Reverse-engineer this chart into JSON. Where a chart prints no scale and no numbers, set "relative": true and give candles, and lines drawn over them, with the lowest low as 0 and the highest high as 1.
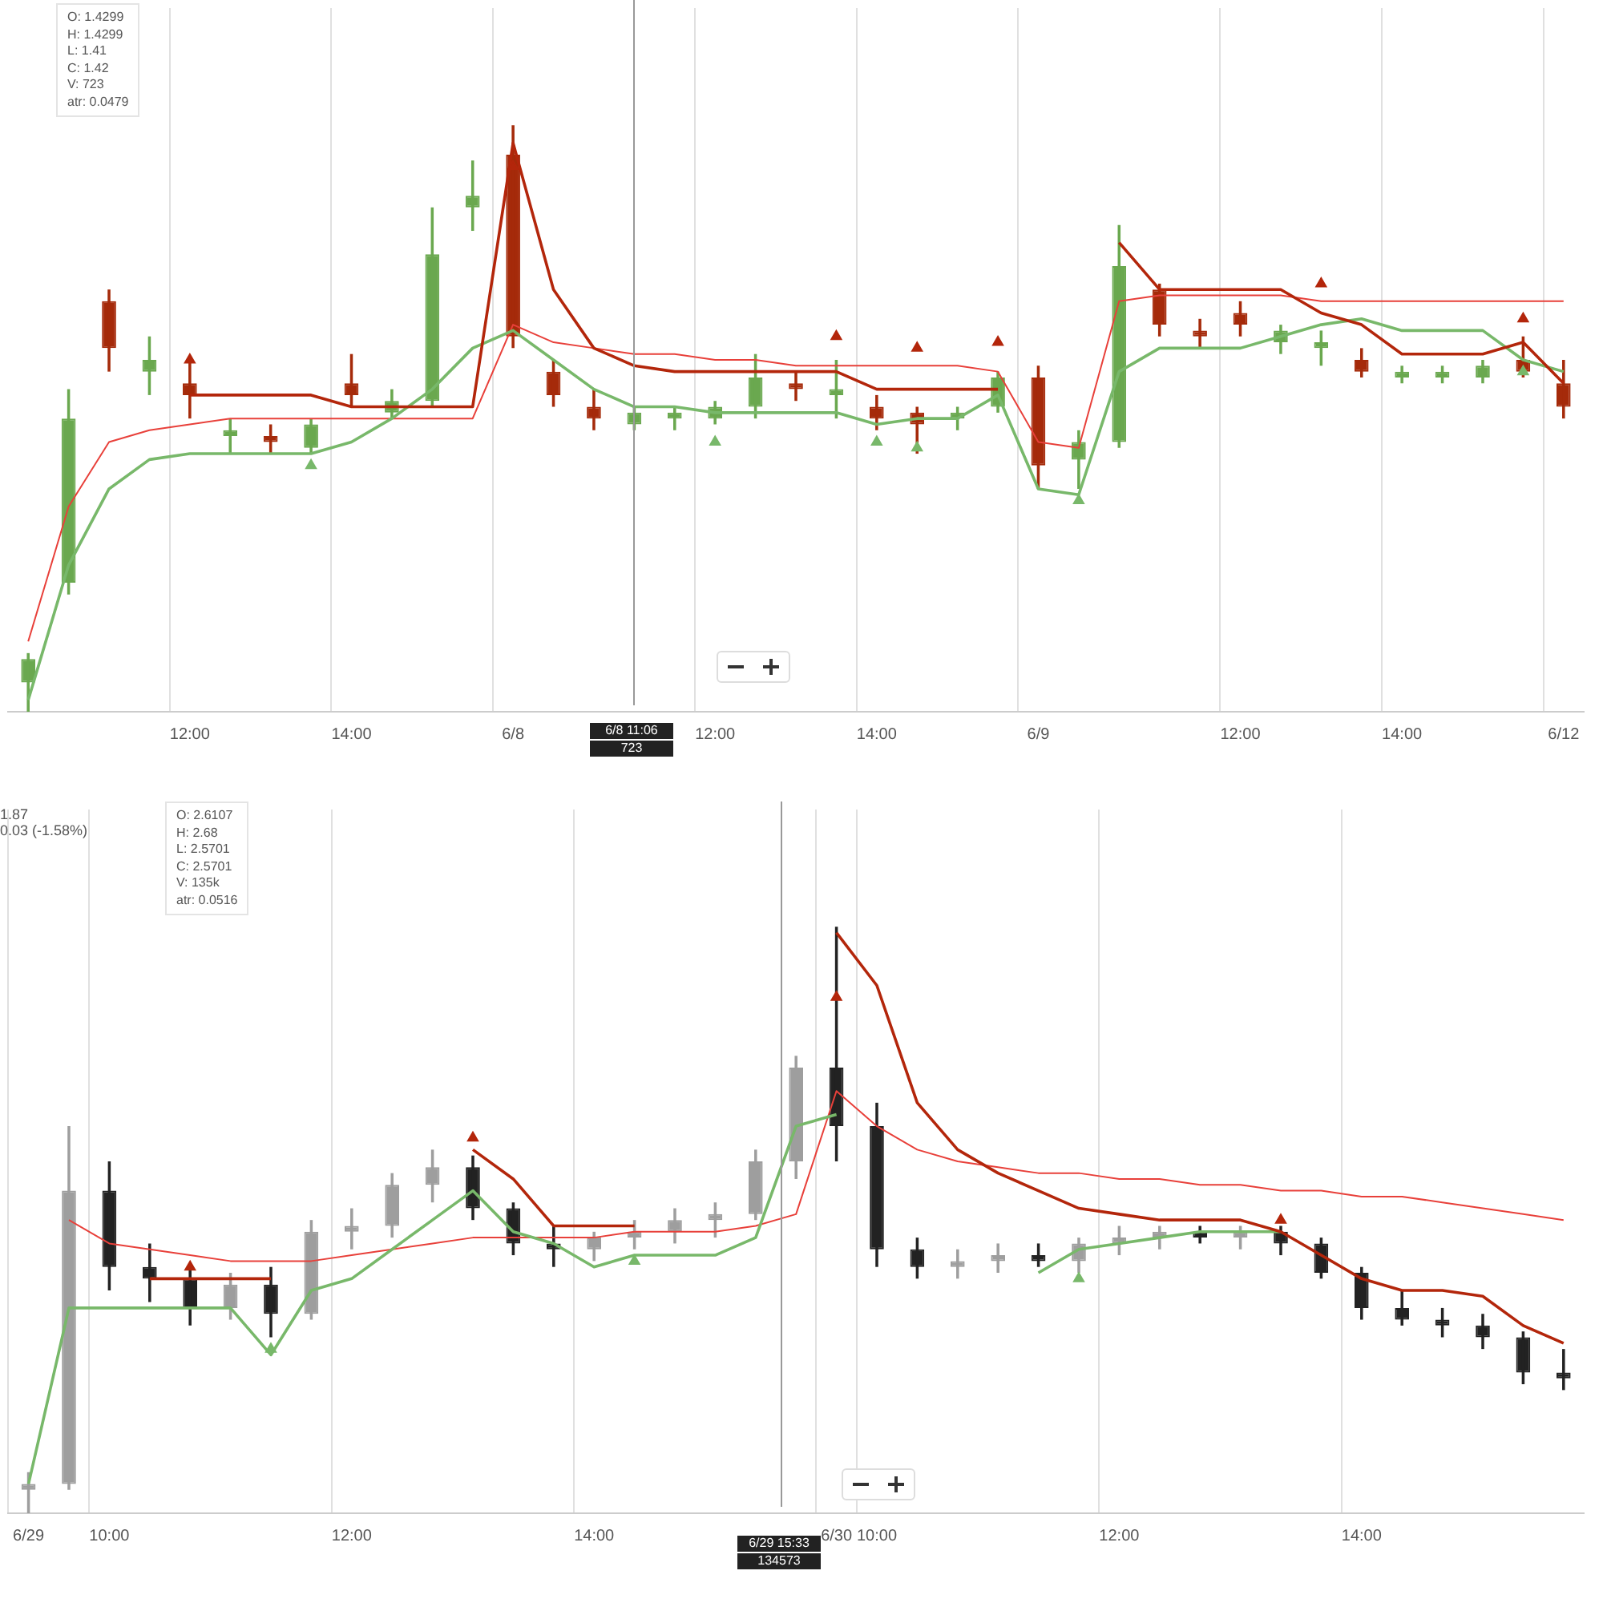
{
  "chart_data": [
    {
      "type": "candlestick",
      "relative": true,
      "grid": "x",
      "tick_labels": "x",
      "categories": [
        null,
        null,
        null,
        null,
        "12:00",
        null,
        null,
        null,
        "14:00",
        null,
        null,
        null,
        "6/8",
        null,
        null,
        null,
        null,
        "12:00",
        null,
        null,
        null,
        "14:00",
        null,
        null,
        null,
        "6/9",
        null,
        null,
        null,
        null,
        "12:00",
        null,
        null,
        null,
        "14:00",
        null,
        null,
        null,
        "6/12"
      ],
      "ohlc": [
        [
          0.05,
          0.1,
          0,
          0.09
        ],
        [
          0.22,
          0.55,
          0.2,
          0.5
        ],
        [
          0.7,
          0.72,
          0.58,
          0.62
        ],
        [
          0.58,
          0.64,
          0.54,
          0.6
        ],
        [
          0.56,
          0.6,
          0.5,
          0.54
        ],
        [
          0.47,
          0.5,
          0.44,
          0.48
        ],
        [
          0.47,
          0.49,
          0.44,
          0.46
        ],
        [
          0.45,
          0.5,
          0.44,
          0.49
        ],
        [
          0.56,
          0.61,
          0.52,
          0.54
        ],
        [
          0.51,
          0.55,
          0.5,
          0.53
        ],
        [
          0.53,
          0.86,
          0.52,
          0.78
        ],
        [
          0.86,
          0.94,
          0.82,
          0.88
        ],
        [
          0.95,
          1,
          0.62,
          0.64
        ],
        [
          0.58,
          0.6,
          0.52,
          0.54
        ],
        [
          0.52,
          0.55,
          0.48,
          0.5
        ],
        [
          0.49,
          0.52,
          0.48,
          0.51
        ],
        [
          0.5,
          0.52,
          0.48,
          0.51
        ],
        [
          0.5,
          0.53,
          0.49,
          0.52
        ],
        [
          0.52,
          0.61,
          0.5,
          0.57
        ],
        [
          0.56,
          0.58,
          0.53,
          0.55
        ],
        [
          0.54,
          0.6,
          0.5,
          0.55
        ],
        [
          0.52,
          0.54,
          0.48,
          0.5
        ],
        [
          0.51,
          0.52,
          0.44,
          0.49
        ],
        [
          0.5,
          0.52,
          0.48,
          0.51
        ],
        [
          0.52,
          0.58,
          0.51,
          0.57
        ],
        [
          0.57,
          0.59,
          0.38,
          0.42
        ],
        [
          0.43,
          0.48,
          0.38,
          0.46
        ],
        [
          0.46,
          0.83,
          0.45,
          0.76
        ],
        [
          0.72,
          0.73,
          0.64,
          0.66
        ],
        [
          0.65,
          0.67,
          0.62,
          0.64
        ],
        [
          0.68,
          0.7,
          0.64,
          0.66
        ],
        [
          0.63,
          0.66,
          0.61,
          0.65
        ],
        [
          0.62,
          0.65,
          0.59,
          0.63
        ],
        [
          0.6,
          0.62,
          0.57,
          0.58
        ],
        [
          0.57,
          0.59,
          0.56,
          0.58
        ],
        [
          0.57,
          0.59,
          0.56,
          0.58
        ],
        [
          0.57,
          0.6,
          0.56,
          0.59
        ],
        [
          0.6,
          0.64,
          0.57,
          0.58
        ],
        [
          0.56,
          0.6,
          0.5,
          0.52
        ]
      ],
      "colors": [
        "#6aa84f",
        "#6aa84f",
        "#a52a0a",
        "#6aa84f",
        "#a52a0a",
        "#6aa84f",
        "#a52a0a",
        "#6aa84f",
        "#a52a0a",
        "#6aa84f",
        "#6aa84f",
        "#6aa84f",
        "#a52a0a",
        "#a52a0a",
        "#a52a0a",
        "#6aa84f",
        "#6aa84f",
        "#6aa84f",
        "#6aa84f",
        "#a52a0a",
        "#6aa84f",
        "#a52a0a",
        "#a52a0a",
        "#6aa84f",
        "#6aa84f",
        "#a52a0a",
        "#6aa84f",
        "#6aa84f",
        "#a52a0a",
        "#a52a0a",
        "#a52a0a",
        "#6aa84f",
        "#6aa84f",
        "#a52a0a",
        "#6aa84f",
        "#6aa84f",
        "#6aa84f",
        "#a52a0a",
        "#a52a0a"
      ],
      "series": [
        {
          "type": "line",
          "color": "#e8403a",
          "values": [
            0.12,
            0.35,
            0.46,
            0.48,
            0.49,
            0.5,
            0.5,
            0.5,
            0.5,
            0.5,
            0.5,
            0.5,
            0.66,
            0.63,
            0.62,
            0.61,
            0.61,
            0.6,
            0.6,
            0.59,
            0.59,
            0.59,
            0.59,
            0.59,
            0.58,
            0.46,
            0.45,
            0.7,
            0.71,
            0.71,
            0.71,
            0.71,
            0.7,
            0.7,
            0.7,
            0.7,
            0.7,
            0.7,
            0.7
          ]
        },
        {
          "type": "line",
          "color": "#78b86a",
          "values": [
            0.02,
            0.25,
            0.38,
            0.43,
            0.44,
            0.44,
            0.44,
            0.44,
            0.46,
            0.5,
            0.55,
            0.62,
            0.65,
            0.6,
            0.55,
            0.52,
            0.52,
            0.51,
            0.51,
            0.51,
            0.51,
            0.49,
            0.5,
            0.5,
            0.54,
            0.38,
            0.37,
            0.58,
            0.62,
            0.62,
            0.62,
            0.64,
            0.66,
            0.67,
            0.65,
            0.65,
            0.65,
            0.6,
            0.58
          ]
        },
        {
          "type": "line",
          "color": "#b3260b",
          "values": [
            null,
            null,
            null,
            null,
            0.54,
            0.54,
            0.54,
            0.54,
            0.52,
            0.52,
            0.52,
            0.52,
            0.97,
            0.72,
            0.62,
            0.59,
            0.58,
            0.58,
            0.58,
            0.58,
            0.58,
            0.55,
            0.55,
            0.55,
            0.55,
            null,
            null,
            0.8,
            0.72,
            0.72,
            0.72,
            0.72,
            0.68,
            0.66,
            0.61,
            0.61,
            0.61,
            0.63,
            0.56
          ]
        },
        {
          "type": "scatter",
          "marker": "triangle",
          "color": "#78b86a",
          "values": [
            null,
            null,
            null,
            null,
            null,
            null,
            null,
            0.42,
            null,
            null,
            null,
            null,
            null,
            null,
            null,
            null,
            null,
            0.46,
            null,
            null,
            null,
            0.46,
            0.45,
            null,
            null,
            null,
            0.36,
            null,
            null,
            null,
            null,
            null,
            null,
            null,
            null,
            null,
            null,
            0.58,
            null
          ]
        },
        {
          "type": "scatter",
          "marker": "triangle",
          "color": "#b3260b",
          "values": [
            null,
            null,
            null,
            null,
            0.6,
            null,
            null,
            null,
            null,
            null,
            null,
            null,
            0.93,
            null,
            null,
            null,
            null,
            null,
            null,
            null,
            0.64,
            null,
            0.62,
            null,
            0.63,
            null,
            null,
            null,
            null,
            null,
            null,
            null,
            0.73,
            null,
            null,
            null,
            null,
            0.67,
            null
          ]
        }
      ],
      "annotations": [
        "O:  1.4299",
        "H:  1.4299",
        "L:  1.41",
        "C:  1.42",
        "V:  723",
        "atr:  0.0479",
        "6/8 11:06",
        "723"
      ]
    },
    {
      "type": "candlestick",
      "relative": true,
      "grid": "x",
      "tick_labels": "x",
      "categories": [
        "6/29",
        null,
        "10:00",
        null,
        null,
        null,
        null,
        null,
        "12:00",
        null,
        null,
        null,
        null,
        null,
        "14:00",
        null,
        null,
        null,
        null,
        null,
        "6/30",
        "10:00",
        null,
        null,
        null,
        null,
        null,
        "12:00",
        null,
        null,
        null,
        null,
        null,
        "14:00",
        null,
        null,
        null,
        null,
        null
      ],
      "ohlc": [
        [
          0.04,
          0.07,
          0,
          0.05
        ],
        [
          0.05,
          0.66,
          0.04,
          0.55
        ],
        [
          0.55,
          0.6,
          0.38,
          0.42
        ],
        [
          0.42,
          0.46,
          0.36,
          0.4
        ],
        [
          0.4,
          0.42,
          0.32,
          0.35
        ],
        [
          0.35,
          0.41,
          0.33,
          0.39
        ],
        [
          0.39,
          0.42,
          0.3,
          0.34
        ],
        [
          0.34,
          0.5,
          0.33,
          0.48
        ],
        [
          0.48,
          0.52,
          0.45,
          0.49
        ],
        [
          0.49,
          0.58,
          0.47,
          0.56
        ],
        [
          0.56,
          0.62,
          0.53,
          0.59
        ],
        [
          0.59,
          0.61,
          0.5,
          0.52
        ],
        [
          0.52,
          0.53,
          0.44,
          0.46
        ],
        [
          0.46,
          0.49,
          0.42,
          0.45
        ],
        [
          0.45,
          0.48,
          0.43,
          0.47
        ],
        [
          0.47,
          0.5,
          0.45,
          0.48
        ],
        [
          0.48,
          0.52,
          0.46,
          0.5
        ],
        [
          0.5,
          0.53,
          0.47,
          0.51
        ],
        [
          0.51,
          0.62,
          0.5,
          0.6
        ],
        [
          0.6,
          0.78,
          0.57,
          0.76
        ],
        [
          0.76,
          1,
          0.6,
          0.66
        ],
        [
          0.66,
          0.7,
          0.42,
          0.45
        ],
        [
          0.45,
          0.47,
          0.4,
          0.42
        ],
        [
          0.42,
          0.45,
          0.4,
          0.43
        ],
        [
          0.43,
          0.46,
          0.41,
          0.44
        ],
        [
          0.44,
          0.46,
          0.42,
          0.43
        ],
        [
          0.43,
          0.47,
          0.41,
          0.46
        ],
        [
          0.46,
          0.49,
          0.44,
          0.47
        ],
        [
          0.47,
          0.49,
          0.45,
          0.48
        ],
        [
          0.48,
          0.49,
          0.46,
          0.47
        ],
        [
          0.47,
          0.49,
          0.45,
          0.48
        ],
        [
          0.48,
          0.49,
          0.44,
          0.46
        ],
        [
          0.46,
          0.47,
          0.4,
          0.41
        ],
        [
          0.41,
          0.42,
          0.33,
          0.35
        ],
        [
          0.35,
          0.38,
          0.32,
          0.33
        ],
        [
          0.33,
          0.35,
          0.3,
          0.32
        ],
        [
          0.32,
          0.34,
          0.28,
          0.3
        ],
        [
          0.3,
          0.31,
          0.22,
          0.24
        ],
        [
          0.24,
          0.28,
          0.21,
          0.23
        ]
      ],
      "colors": [
        "#9e9e9e",
        "#9e9e9e",
        "#222222",
        "#222222",
        "#222222",
        "#9e9e9e",
        "#222222",
        "#9e9e9e",
        "#9e9e9e",
        "#9e9e9e",
        "#9e9e9e",
        "#222222",
        "#222222",
        "#222222",
        "#9e9e9e",
        "#9e9e9e",
        "#9e9e9e",
        "#9e9e9e",
        "#9e9e9e",
        "#9e9e9e",
        "#222222",
        "#222222",
        "#222222",
        "#9e9e9e",
        "#9e9e9e",
        "#222222",
        "#9e9e9e",
        "#9e9e9e",
        "#9e9e9e",
        "#222222",
        "#9e9e9e",
        "#222222",
        "#222222",
        "#222222",
        "#222222",
        "#222222",
        "#222222",
        "#222222",
        "#222222"
      ],
      "series": [
        {
          "type": "line",
          "color": "#e8403a",
          "values": [
            null,
            0.5,
            0.46,
            0.45,
            0.44,
            0.43,
            0.43,
            0.43,
            0.44,
            0.45,
            0.46,
            0.47,
            0.47,
            0.47,
            0.47,
            0.48,
            0.48,
            0.48,
            0.49,
            0.51,
            0.72,
            0.66,
            0.62,
            0.6,
            0.59,
            0.58,
            0.58,
            0.57,
            0.57,
            0.56,
            0.56,
            0.55,
            0.55,
            0.54,
            0.54,
            0.53,
            0.52,
            0.51,
            0.5
          ]
        },
        {
          "type": "line",
          "color": "#78b86a",
          "values": [
            0.05,
            0.35,
            0.35,
            0.35,
            0.35,
            0.35,
            0.27,
            0.38,
            0.4,
            0.45,
            0.5,
            0.55,
            0.48,
            0.46,
            0.42,
            0.44,
            0.44,
            0.44,
            0.47,
            0.66,
            0.68,
            null,
            null,
            null,
            null,
            0.41,
            0.45,
            0.46,
            0.47,
            0.48,
            0.48,
            0.48,
            null,
            null,
            null,
            null,
            null,
            null,
            null
          ]
        },
        {
          "type": "line",
          "color": "#b3260b",
          "values": [
            null,
            null,
            null,
            0.4,
            0.4,
            0.4,
            0.4,
            null,
            null,
            null,
            null,
            0.62,
            0.57,
            0.49,
            0.49,
            0.49,
            null,
            null,
            null,
            null,
            0.99,
            0.9,
            0.7,
            0.62,
            0.58,
            0.55,
            0.52,
            0.51,
            0.5,
            0.5,
            0.5,
            0.48,
            0.44,
            0.4,
            0.38,
            0.38,
            0.37,
            0.32,
            0.29
          ]
        },
        {
          "type": "scatter",
          "marker": "triangle",
          "color": "#78b86a",
          "values": [
            null,
            null,
            null,
            null,
            null,
            null,
            0.28,
            null,
            null,
            null,
            null,
            null,
            null,
            null,
            null,
            0.43,
            null,
            null,
            null,
            null,
            null,
            null,
            null,
            null,
            null,
            null,
            0.4,
            null,
            null,
            null,
            null,
            null,
            null,
            null,
            null,
            null,
            null,
            null,
            null
          ]
        },
        {
          "type": "scatter",
          "marker": "triangle",
          "color": "#b3260b",
          "values": [
            null,
            null,
            null,
            null,
            0.42,
            null,
            null,
            null,
            null,
            null,
            null,
            0.64,
            null,
            null,
            null,
            null,
            null,
            null,
            null,
            null,
            0.88,
            null,
            null,
            null,
            null,
            null,
            null,
            null,
            null,
            null,
            null,
            0.5,
            null,
            null,
            null,
            null,
            null,
            null,
            null
          ]
        }
      ],
      "annotations": [
        "1.87",
        "0.03 (-1.58%)",
        "O:  2.6107",
        "H:  2.68",
        "L:  2.5701",
        "C:  2.5701",
        "V:  135k",
        "atr:  0.0516",
        "6/29 15:33",
        "134573"
      ]
    }
  ]
}
